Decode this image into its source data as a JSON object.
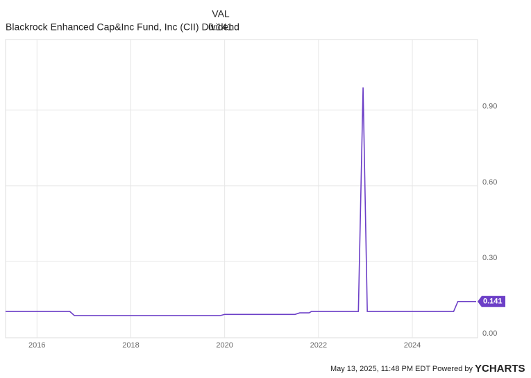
{
  "chart_data": {
    "type": "line",
    "legend_header": "VAL",
    "x": [
      2015.33,
      2016.7,
      2016.8,
      2019.9,
      2020.0,
      2021.5,
      2021.6,
      2021.8,
      2021.85,
      2022.85,
      2022.95,
      2023.04,
      2024.88,
      2024.97,
      2025.36
    ],
    "series": [
      {
        "name": "Blackrock Enhanced Cap&Inc Fund, Inc (CII) Dividend",
        "color": "#6c3fc7",
        "values": [
          0.1015,
          0.1015,
          0.085,
          0.085,
          0.09,
          0.09,
          0.096,
          0.096,
          0.1015,
          0.1015,
          0.99,
          0.1015,
          0.1015,
          0.141,
          0.141
        ],
        "current_value": 0.141
      }
    ],
    "xlim": [
      2015.33,
      2025.39
    ],
    "xticks": [
      2016,
      2018,
      2020,
      2022,
      2024
    ],
    "ylim": [
      0,
      1.18
    ],
    "yticks": [
      {
        "value": 0,
        "label": "0.00"
      },
      {
        "value": 0.3,
        "label": "0.30"
      },
      {
        "value": 0.6,
        "label": "0.60"
      },
      {
        "value": 0.9,
        "label": "0.90"
      }
    ],
    "grid": true,
    "footer": "May 13, 2025, 11:48 PM EDT Powered by",
    "brand": "YCHARTS"
  }
}
